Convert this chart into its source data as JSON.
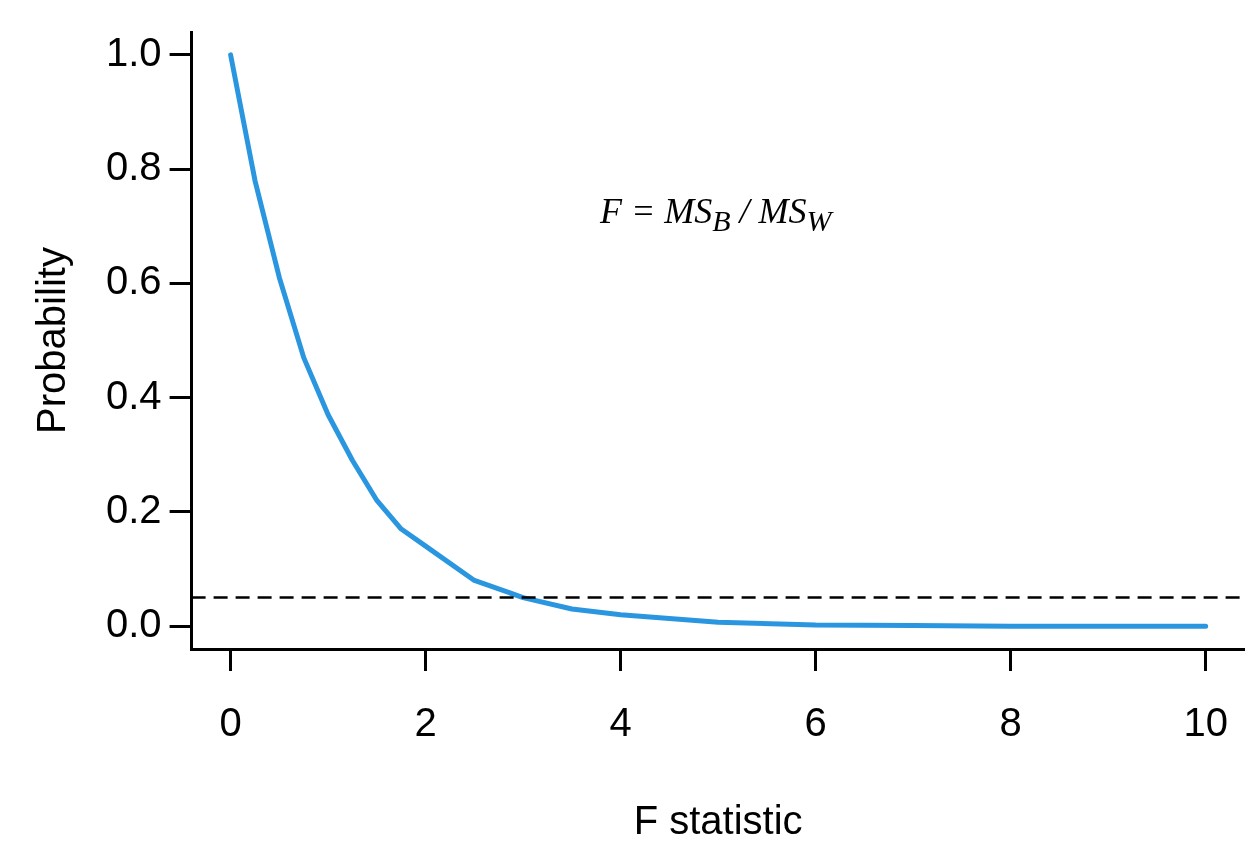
{
  "chart_data": {
    "type": "line",
    "xlabel": "F statistic",
    "ylabel": "Probability",
    "x": [
      0,
      0.25,
      0.5,
      0.75,
      1,
      1.25,
      1.5,
      1.75,
      2,
      2.5,
      3,
      3.5,
      4,
      5,
      6,
      7,
      8,
      9,
      10
    ],
    "series": [
      {
        "color": "#2b96e0",
        "values": [
          1.0,
          0.78,
          0.61,
          0.47,
          0.37,
          0.29,
          0.22,
          0.17,
          0.14,
          0.08,
          0.05,
          0.03,
          0.02,
          0.007,
          0.002,
          0.001,
          0,
          0,
          0
        ]
      }
    ],
    "xlim": [
      -0.4,
      10.4
    ],
    "xticks": [
      0,
      2,
      4,
      6,
      8,
      10
    ],
    "ylim": [
      -0.04,
      1.04
    ],
    "yticks": [
      {
        "value": 0,
        "label": "0.0"
      },
      {
        "value": 0.2,
        "label": "0.2"
      },
      {
        "value": 0.4,
        "label": "0.4"
      },
      {
        "value": 0.6,
        "label": "0.6"
      },
      {
        "value": 0.8,
        "label": "0.8"
      },
      {
        "value": 1,
        "label": "1.0"
      }
    ],
    "ref_lines": [
      {
        "axis": "y",
        "value": 0.05,
        "color": "#000000",
        "line_style": "dashed"
      }
    ],
    "annotations": [
      "F = MS$_{B}$ / MS$_{W}$"
    ],
    "grid": false,
    "legend": false,
    "marker": "none",
    "line_style": "solid"
  }
}
